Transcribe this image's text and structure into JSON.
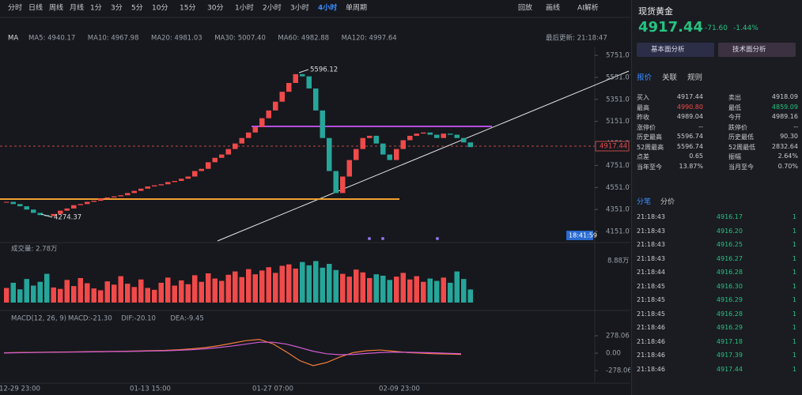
{
  "toolbar": {
    "periods": [
      "分时",
      "日线",
      "周线",
      "月线",
      "1分",
      "3分",
      "5分",
      "10分",
      "15分",
      "30分",
      "1小时",
      "2小时",
      "3小时",
      "4小时",
      "单周期"
    ],
    "active_period": "4小时",
    "tools": [
      "回放",
      "画线",
      "AI解析"
    ]
  },
  "ma": {
    "label": "MA",
    "items": [
      "MA5: 4940.17",
      "MA10: 4967.98",
      "MA20: 4981.03",
      "MA30: 5007.40",
      "MA60: 4982.88",
      "MA120: 4997.64"
    ],
    "colors": [
      "#e0e0e0",
      "#f5c542",
      "#d35bd3",
      "#f07a3a",
      "#3fc6c6",
      "#8b7cf0"
    ]
  },
  "last_update": "最后更新: 21:18:47",
  "chart_data": {
    "type": "candlestick",
    "up_color": "#f04a4a",
    "down_color": "#26a69a",
    "closes": [
      4420,
      4400,
      4380,
      4350,
      4320,
      4300,
      4290,
      4310,
      4340,
      4360,
      4390,
      4400,
      4420,
      4430,
      4450,
      4460,
      4470,
      4480,
      4500,
      4520,
      4540,
      4560,
      4570,
      4580,
      4600,
      4610,
      4630,
      4650,
      4700,
      4720,
      4780,
      4820,
      4850,
      4900,
      4950,
      5000,
      5050,
      5100,
      5180,
      5250,
      5330,
      5420,
      5500,
      5580,
      5560,
      5450,
      5250,
      5000,
      4700,
      4500,
      4650,
      4800,
      4900,
      5000,
      5020,
      4950,
      4850,
      4800,
      4900,
      4980,
      5020,
      5040,
      5050,
      5030,
      5000,
      5040,
      5030,
      5000,
      4960,
      4917.44
    ],
    "ylim": [
      4065,
      5823
    ],
    "yticks": [
      5751.07,
      5551.07,
      5351.07,
      5151.07,
      4951.07,
      4751.07,
      4551.07,
      4351.07,
      4151.07
    ],
    "high_label": "5596.12",
    "low_label": "4274.37",
    "last_price_label": "4917.44",
    "time_label": "18:41:59",
    "xticks": [
      "12-29 23:00",
      "01-13 15:00",
      "01-27 07:00",
      "02-09 23:00"
    ]
  },
  "volume": {
    "title": "成交量: 2.78万",
    "axis_label": "8.88万",
    "ylim": [
      0,
      8.88
    ],
    "values": [
      3.1,
      4.2,
      2.8,
      5.0,
      3.6,
      4.4,
      6.1,
      3.2,
      2.9,
      4.8,
      3.5,
      5.2,
      4.1,
      3.0,
      2.6,
      4.5,
      3.8,
      5.6,
      4.0,
      3.3,
      4.9,
      3.1,
      2.7,
      4.2,
      5.3,
      3.6,
      4.7,
      3.9,
      5.8,
      4.4,
      6.2,
      5.1,
      4.6,
      5.9,
      6.6,
      5.4,
      7.1,
      6.0,
      6.8,
      7.5,
      6.3,
      7.8,
      8.1,
      7.2,
      8.6,
      7.9,
      8.8,
      7.4,
      8.2,
      6.9,
      6.1,
      5.5,
      7.0,
      6.4,
      5.2,
      6.0,
      5.7,
      4.8,
      5.5,
      6.3,
      4.9,
      5.6,
      4.4,
      5.1,
      4.6,
      5.3,
      4.2,
      6.6,
      5.0,
      2.78
    ]
  },
  "macd": {
    "title": "MACD(12, 26, 9)",
    "items": [
      "MACD:-21.30",
      "DIF:-20.10",
      "DEA:-9.45"
    ],
    "colors": [
      "#f5c542",
      "#f07a3a",
      "#d35bd3"
    ],
    "ylim": [
      -480,
      493
    ],
    "yticks": [
      278.06,
      {
        "value": 0,
        "label": "0.00"
      },
      -278.06
    ],
    "dif": [
      5,
      10,
      12,
      15,
      18,
      20,
      22,
      25,
      28,
      30,
      35,
      40,
      45,
      55,
      70,
      90,
      120,
      160,
      200,
      220,
      150,
      20,
      -120,
      -200,
      -150,
      -60,
      10,
      40,
      50,
      30,
      10,
      0,
      -10,
      -15,
      -20.1
    ],
    "dea": [
      3,
      6,
      9,
      12,
      15,
      17,
      19,
      22,
      25,
      27,
      30,
      34,
      38,
      45,
      55,
      70,
      90,
      115,
      145,
      175,
      175,
      145,
      90,
      30,
      -10,
      -25,
      -20,
      -5,
      10,
      15,
      14,
      10,
      5,
      -3,
      -9.45
    ]
  },
  "panel": {
    "title": "现货黄金",
    "price": "4917.44",
    "change": "-71.60",
    "change_pct": "-1.44%",
    "buttons": [
      "基本面分析",
      "技术面分析"
    ],
    "tabs": [
      "报价",
      "关联",
      "规则"
    ],
    "quote": [
      [
        "买入",
        "4917.44",
        "卖出",
        "4918.09"
      ],
      [
        "最高",
        "4990.80",
        "最低",
        "4859.09"
      ],
      [
        "昨收",
        "4989.04",
        "今开",
        "4989.16"
      ],
      [
        "涨停价",
        "--",
        "跌停价",
        "--"
      ],
      [
        "历史最高",
        "5596.74",
        "历史最低",
        "90.30"
      ],
      [
        "52周最高",
        "5596.74",
        "52周最低",
        "2832.64"
      ],
      [
        "点差",
        "0.65",
        "振幅",
        "2.64%"
      ],
      [
        "当年至今",
        "13.87%",
        "当月至今",
        "0.70%"
      ]
    ],
    "trade_tabs": [
      "分笔",
      "分价"
    ],
    "trades": [
      [
        "21:18:43",
        "4916.17",
        "1"
      ],
      [
        "21:18:43",
        "4916.20",
        "1"
      ],
      [
        "21:18:43",
        "4916.25",
        "1"
      ],
      [
        "21:18:43",
        "4916.27",
        "1"
      ],
      [
        "21:18:44",
        "4916.28",
        "1"
      ],
      [
        "21:18:45",
        "4916.30",
        "1"
      ],
      [
        "21:18:45",
        "4916.29",
        "1"
      ],
      [
        "21:18:45",
        "4916.28",
        "1"
      ],
      [
        "21:18:46",
        "4916.29",
        "1"
      ],
      [
        "21:18:46",
        "4917.18",
        "1"
      ],
      [
        "21:18:46",
        "4917.39",
        "1"
      ],
      [
        "21:18:46",
        "4917.44",
        "1"
      ]
    ]
  }
}
